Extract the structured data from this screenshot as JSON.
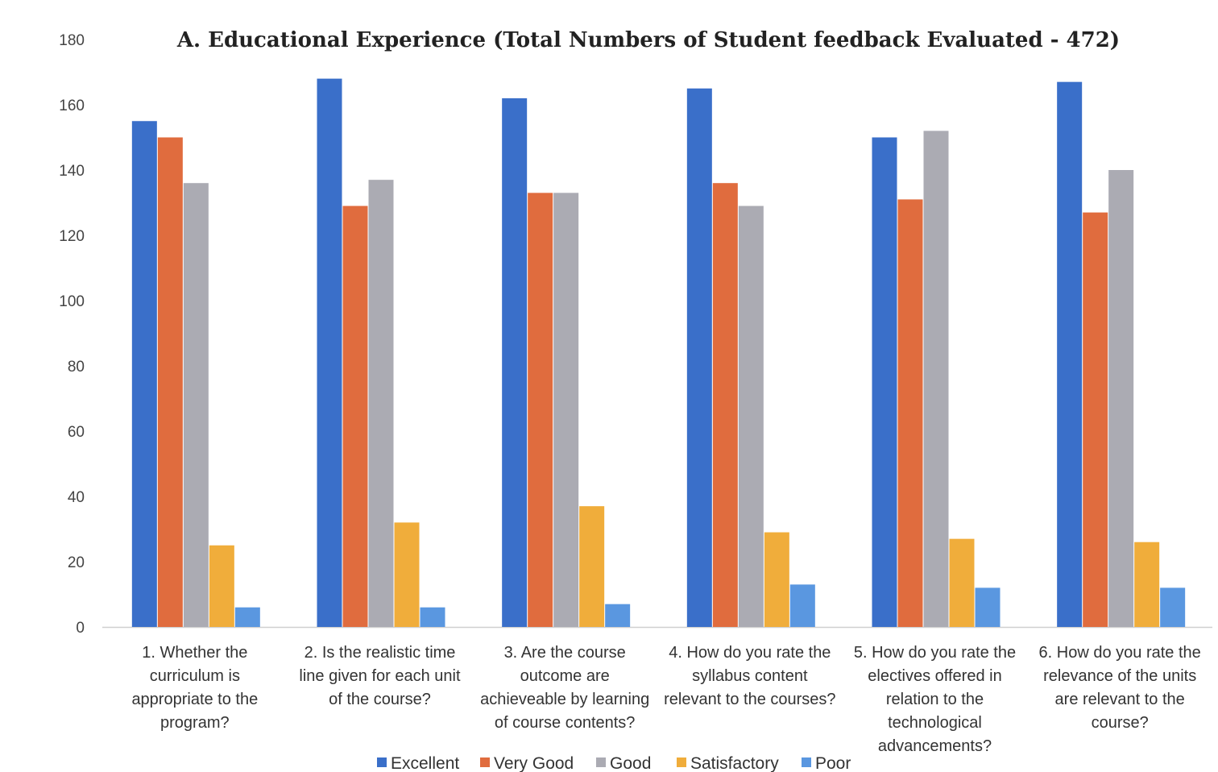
{
  "chart_data": {
    "type": "bar",
    "title": "A. Educational Experience  (Total Numbers of Student feedback Evaluated - 472)",
    "xlabel": "",
    "ylabel": "",
    "ylim": [
      0,
      180
    ],
    "yticks": [
      0,
      20,
      40,
      60,
      80,
      100,
      120,
      140,
      160,
      180
    ],
    "grid": false,
    "legend_position": "bottom",
    "categories": [
      "1. Whether the curriculum is appropriate to the program?",
      "2. Is the realistic time line given for each unit of the course?",
      "3. Are the course outcome are achieveable by learning of course contents?",
      "4. How do you rate the syllabus content relevant to the courses?",
      "5. How do you rate the electives offered in relation to the technological advancements?",
      "6. How do you rate the relevance of the units are relevant to the course?"
    ],
    "category_lines": [
      [
        "1. Whether the",
        "curriculum is",
        "appropriate to the",
        "program?"
      ],
      [
        "2. Is the realistic time",
        "line given for each unit",
        "of the course?"
      ],
      [
        "3. Are the course",
        "outcome are",
        "achieveable by learning",
        "of course contents?"
      ],
      [
        "4. How do you rate the",
        "syllabus content",
        "relevant to the courses?"
      ],
      [
        "5. How do you rate the",
        "electives offered in",
        "relation to the",
        "technological",
        "advancements?"
      ],
      [
        "6. How do you rate the",
        "relevance of the units",
        "are relevant to the",
        "course?"
      ]
    ],
    "series": [
      {
        "name": "Excellent",
        "color": "#3a6fc9",
        "values": [
          155,
          168,
          162,
          165,
          150,
          167
        ]
      },
      {
        "name": "Very Good",
        "color": "#e06c3e",
        "values": [
          150,
          129,
          133,
          136,
          131,
          127
        ]
      },
      {
        "name": "Good",
        "color": "#ababb3",
        "values": [
          136,
          137,
          133,
          129,
          152,
          140
        ]
      },
      {
        "name": "Satisfactory",
        "color": "#f0ad3b",
        "values": [
          25,
          32,
          37,
          29,
          27,
          26
        ]
      },
      {
        "name": "Poor",
        "color": "#5a97e0",
        "values": [
          6,
          6,
          7,
          13,
          12,
          12
        ]
      }
    ]
  }
}
